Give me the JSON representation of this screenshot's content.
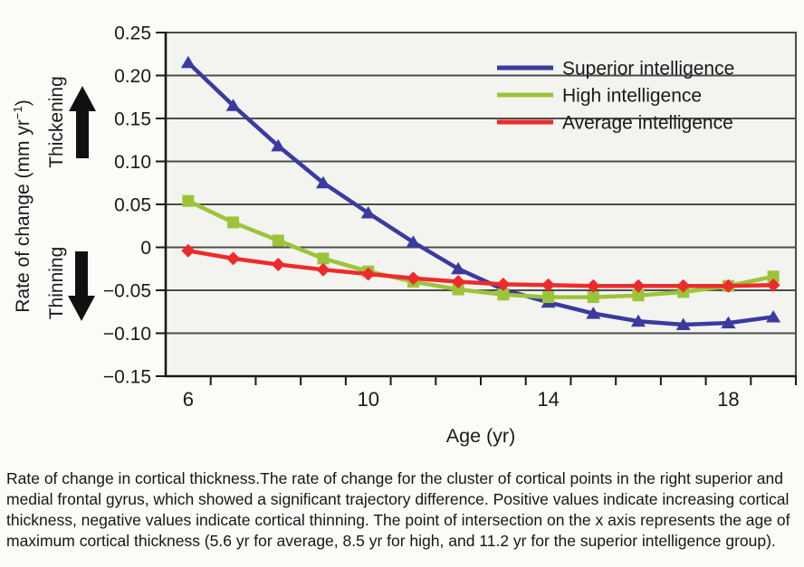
{
  "figure": {
    "y_axis": {
      "title_main": "Rate of change (mm yr",
      "title_sup": "−1",
      "title_end": ")"
    },
    "direction_labels": {
      "up": "Thickening",
      "down": "Thinning"
    },
    "caption_lines": [
      "Rate of change in cortical thickness.The rate of change for the cluster of cortical points in the right superior and",
      "medial frontal gyrus, which showed a significant trajectory difference. Positive values indicate increasing cortical",
      "thickness, negative values indicate cortical thinning. The point of intersection on the x axis represents the age of",
      "maximum cortical thickness (5.6 yr for average, 8.5 yr for high, and 11.2 yr for the superior intelligence group)."
    ]
  },
  "chart_data": {
    "type": "line",
    "xlabel": "Age (yr)",
    "ylabel": "Rate of change (mm yr−1)",
    "xlim": [
      5.5,
      19.5
    ],
    "ylim": [
      -0.15,
      0.25
    ],
    "grid": true,
    "legend_position": "top-right-inside",
    "x": [
      6,
      7,
      8,
      9,
      10,
      11,
      12,
      13,
      14,
      15,
      16,
      17,
      18,
      19
    ],
    "x_tick_labels": [
      {
        "v": 6,
        "label": "6"
      },
      {
        "v": 10,
        "label": "10"
      },
      {
        "v": 14,
        "label": "14"
      },
      {
        "v": 18,
        "label": "18"
      }
    ],
    "x_minor_ticks": [
      6.5,
      7.5,
      8.5,
      9.5,
      10.5,
      11.5,
      12.5,
      13.5,
      14.5,
      15.5,
      16.5,
      17.5,
      18.5,
      19.5
    ],
    "y_ticks": [
      {
        "v": 0.25,
        "label": "0.25"
      },
      {
        "v": 0.2,
        "label": "0.20"
      },
      {
        "v": 0.15,
        "label": "0.15"
      },
      {
        "v": 0.1,
        "label": "0.10"
      },
      {
        "v": 0.05,
        "label": "0.05"
      },
      {
        "v": 0,
        "label": "0"
      },
      {
        "v": -0.05,
        "label": "−0.05"
      },
      {
        "v": -0.1,
        "label": "−0.10"
      },
      {
        "v": -0.15,
        "label": "−0.15"
      }
    ],
    "series": [
      {
        "name": "Superior intelligence",
        "color": "#3a3aa0",
        "marker": "triangle",
        "values": [
          0.215,
          0.165,
          0.118,
          0.075,
          0.04,
          0.006,
          -0.025,
          -0.049,
          -0.064,
          -0.077,
          -0.086,
          -0.09,
          -0.088,
          -0.081
        ]
      },
      {
        "name": "High intelligence",
        "color": "#9cc439",
        "marker": "square",
        "values": [
          0.054,
          0.029,
          0.008,
          -0.013,
          -0.028,
          -0.04,
          -0.049,
          -0.055,
          -0.058,
          -0.058,
          -0.056,
          -0.052,
          -0.045,
          -0.034
        ]
      },
      {
        "name": "Average intelligence",
        "color": "#ee2b2b",
        "marker": "diamond",
        "values": [
          -0.004,
          -0.013,
          -0.02,
          -0.026,
          -0.031,
          -0.036,
          -0.04,
          -0.043,
          -0.044,
          -0.045,
          -0.045,
          -0.045,
          -0.045,
          -0.044
        ]
      }
    ],
    "annotations": {
      "colors": {
        "grid": "#4c4c4c",
        "axis": "#1a1a1a",
        "plot_bg": "#f3f3f0",
        "text": "#1a1a1a"
      }
    }
  }
}
